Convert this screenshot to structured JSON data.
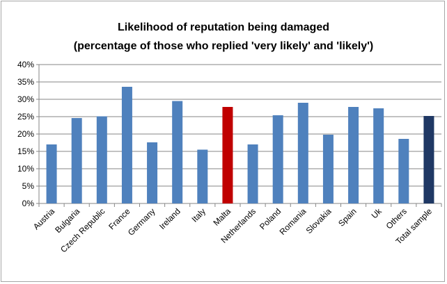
{
  "chart_data": {
    "type": "bar",
    "title": "Likelihood of reputation being damaged",
    "subtitle": "(percentage of those who replied 'very likely' and 'likely')",
    "xlabel": "",
    "ylabel": "",
    "ylim": [
      0,
      40
    ],
    "yticks": [
      "0%",
      "5%",
      "10%",
      "15%",
      "20%",
      "25%",
      "30%",
      "35%",
      "40%"
    ],
    "grid": true,
    "legend": "none",
    "categories": [
      "Austria",
      "Bulgaria",
      "Czech Republic",
      "France",
      "Germany",
      "Ireland",
      "Italy",
      "Malta",
      "Netherlands",
      "Poland",
      "Romania",
      "Slovakia",
      "Spain",
      "Uk",
      "Others",
      "Total sample"
    ],
    "values": [
      17.0,
      24.6,
      25.1,
      33.6,
      17.6,
      29.5,
      15.5,
      27.8,
      17.0,
      25.4,
      29.0,
      19.8,
      27.8,
      27.4,
      18.6,
      25.2
    ],
    "colors": {
      "default": "#4f81bd",
      "Malta": "#c00000",
      "Total sample": "#1f3864"
    }
  }
}
